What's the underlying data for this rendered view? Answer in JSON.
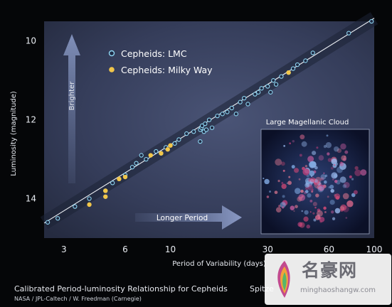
{
  "chart_data": {
    "type": "scatter",
    "x_scale": "log",
    "y_inverted": true,
    "xlim": [
      2.4,
      100
    ],
    "ylim": [
      9.5,
      15.0
    ],
    "xlabel": "Period of Variability (days)",
    "ylabel": "Luminosity (magnitude)",
    "x_ticks": [
      3,
      6,
      10,
      30,
      60,
      100
    ],
    "y_ticks": [
      10,
      12,
      14
    ],
    "legend_position": "top-left",
    "fit_line": {
      "x": [
        2.4,
        100
      ],
      "y": [
        14.62,
        9.42
      ]
    },
    "series": [
      {
        "name": "Cepheids: LMC",
        "color": "#8fd6f2",
        "points": [
          {
            "x": 2.5,
            "y": 14.6
          },
          {
            "x": 2.8,
            "y": 14.5
          },
          {
            "x": 3.4,
            "y": 14.2
          },
          {
            "x": 4.0,
            "y": 14.0
          },
          {
            "x": 4.8,
            "y": 13.8
          },
          {
            "x": 5.2,
            "y": 13.6
          },
          {
            "x": 6.0,
            "y": 13.4
          },
          {
            "x": 6.5,
            "y": 13.2
          },
          {
            "x": 6.8,
            "y": 13.1
          },
          {
            "x": 7.2,
            "y": 12.9
          },
          {
            "x": 7.6,
            "y": 13.0
          },
          {
            "x": 8.5,
            "y": 12.8
          },
          {
            "x": 9.0,
            "y": 12.85
          },
          {
            "x": 9.5,
            "y": 12.7
          },
          {
            "x": 10.5,
            "y": 12.6
          },
          {
            "x": 11.0,
            "y": 12.5
          },
          {
            "x": 12.0,
            "y": 12.35
          },
          {
            "x": 13.0,
            "y": 12.3
          },
          {
            "x": 14.0,
            "y": 12.55
          },
          {
            "x": 14.0,
            "y": 12.25
          },
          {
            "x": 14.2,
            "y": 12.2
          },
          {
            "x": 14.3,
            "y": 12.15
          },
          {
            "x": 14.6,
            "y": 12.3
          },
          {
            "x": 14.8,
            "y": 12.1
          },
          {
            "x": 15.0,
            "y": 12.25
          },
          {
            "x": 15.5,
            "y": 12.0
          },
          {
            "x": 16.0,
            "y": 12.2
          },
          {
            "x": 17.0,
            "y": 11.9
          },
          {
            "x": 18.0,
            "y": 11.85
          },
          {
            "x": 19.0,
            "y": 11.8
          },
          {
            "x": 20.0,
            "y": 11.7
          },
          {
            "x": 21.0,
            "y": 11.85
          },
          {
            "x": 22.0,
            "y": 11.55
          },
          {
            "x": 23.0,
            "y": 11.45
          },
          {
            "x": 24.0,
            "y": 11.6
          },
          {
            "x": 26.0,
            "y": 11.35
          },
          {
            "x": 27.0,
            "y": 11.3
          },
          {
            "x": 28.0,
            "y": 11.2
          },
          {
            "x": 30.0,
            "y": 11.15
          },
          {
            "x": 31.0,
            "y": 11.3
          },
          {
            "x": 32.0,
            "y": 11.0
          },
          {
            "x": 33.0,
            "y": 11.1
          },
          {
            "x": 35.0,
            "y": 10.9
          },
          {
            "x": 38.0,
            "y": 10.8
          },
          {
            "x": 40.0,
            "y": 10.7
          },
          {
            "x": 42.0,
            "y": 10.6
          },
          {
            "x": 46.0,
            "y": 10.5
          },
          {
            "x": 50.0,
            "y": 10.3
          },
          {
            "x": 75.0,
            "y": 9.8
          },
          {
            "x": 97.0,
            "y": 9.5
          }
        ]
      },
      {
        "name": "Cepheids: Milky Way",
        "color": "#f1c64a",
        "points": [
          {
            "x": 4.0,
            "y": 14.15
          },
          {
            "x": 4.8,
            "y": 13.95
          },
          {
            "x": 4.8,
            "y": 13.8
          },
          {
            "x": 5.6,
            "y": 13.5
          },
          {
            "x": 6.0,
            "y": 13.45
          },
          {
            "x": 8.0,
            "y": 12.9
          },
          {
            "x": 9.0,
            "y": 12.85
          },
          {
            "x": 9.7,
            "y": 12.75
          },
          {
            "x": 10.0,
            "y": 12.65
          },
          {
            "x": 38.0,
            "y": 10.8
          }
        ]
      }
    ],
    "annotations": {
      "brighter": "Brighter",
      "longer_period": "Longer Period",
      "inset_title": "Large Magellanic Cloud"
    }
  },
  "caption": {
    "title": "Calibrated Period-luminosity Relationship for Cepheids",
    "spitzer": "Spitze",
    "credit": "NASA / JPL-Caltech / W. Freedman (Carnegie)"
  },
  "watermark": {
    "text": "名豪网",
    "url": "minghaoshangw.com"
  }
}
